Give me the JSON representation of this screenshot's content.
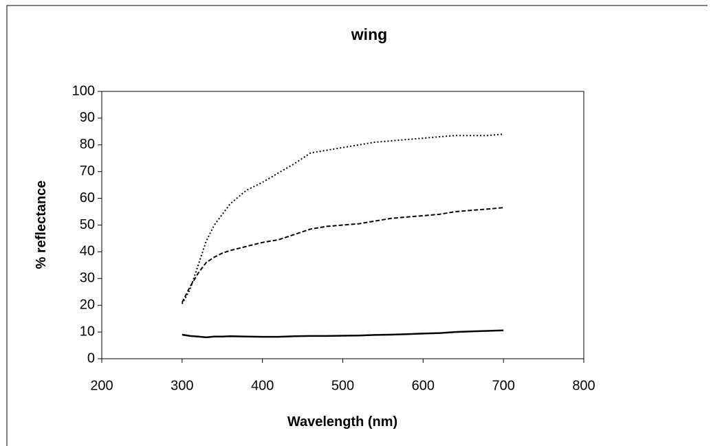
{
  "chart_data": {
    "type": "line",
    "title": "wing",
    "x_label": "Wavelength (nm)",
    "y_label": "% reflectance",
    "x": [
      300,
      310,
      320,
      330,
      340,
      350,
      360,
      380,
      400,
      420,
      440,
      460,
      480,
      500,
      520,
      540,
      560,
      580,
      600,
      620,
      640,
      660,
      680,
      700
    ],
    "series": [
      {
        "color": "#000000",
        "style": "dotted",
        "values": [
          20.5,
          26,
          35,
          44,
          50,
          54,
          58,
          63,
          66,
          69.5,
          73,
          77,
          78,
          79,
          80,
          81,
          81.5,
          82,
          82.5,
          83,
          83.5,
          83.5,
          83.5,
          84
        ]
      },
      {
        "color": "#000000",
        "style": "dashed",
        "values": [
          21,
          27,
          32,
          36,
          38,
          39.5,
          40.5,
          42,
          43.5,
          44.5,
          46.5,
          48.5,
          49.5,
          50,
          50.5,
          51.5,
          52.5,
          53,
          53.5,
          54,
          55,
          55.5,
          56,
          56.5
        ]
      },
      {
        "color": "#000000",
        "style": "solid",
        "values": [
          9,
          8.5,
          8.3,
          8,
          8.3,
          8.3,
          8.4,
          8.3,
          8.2,
          8.2,
          8.4,
          8.5,
          8.5,
          8.6,
          8.7,
          8.9,
          9,
          9.2,
          9.4,
          9.6,
          10,
          10.2,
          10.4,
          10.6
        ]
      }
    ],
    "xlim": [
      200,
      800
    ],
    "xticks": [
      200,
      300,
      400,
      500,
      600,
      700,
      800
    ],
    "ylim": [
      0,
      100
    ],
    "yticks": [
      0,
      10,
      20,
      30,
      40,
      50,
      60,
      70,
      80,
      90,
      100
    ]
  }
}
